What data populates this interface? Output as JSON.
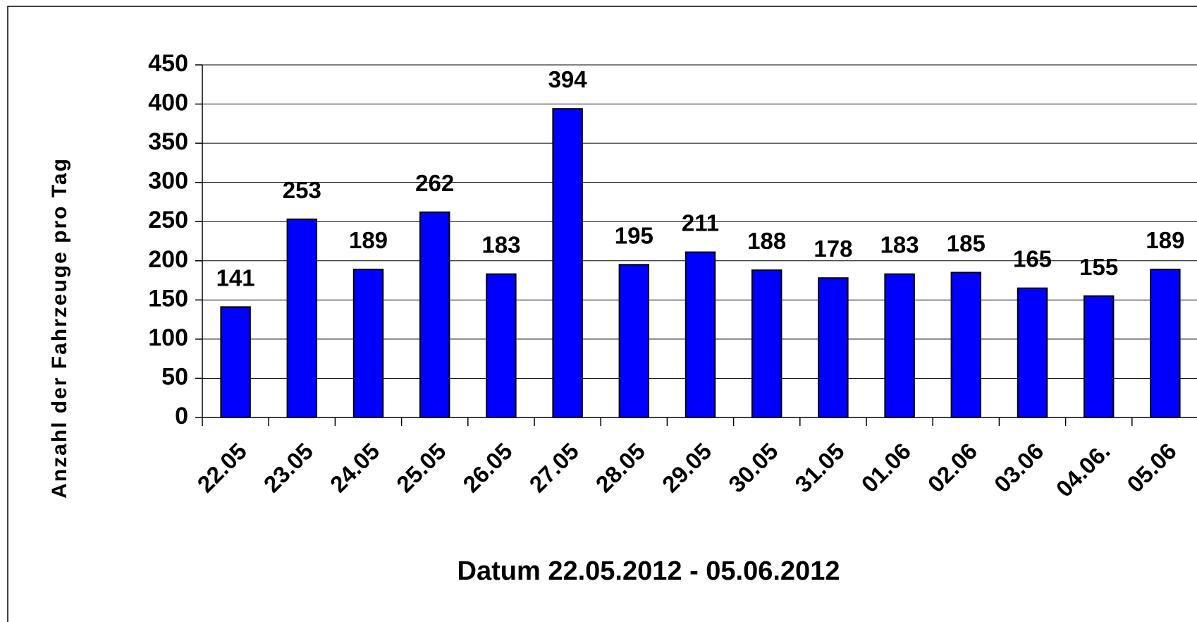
{
  "chart_data": {
    "type": "bar",
    "xlabel": "Datum 22.05.2012 - 05.06.2012",
    "ylabel": "Anzahl der Fahrzeuge pro Tag",
    "categories": [
      "22.05",
      "23.05",
      "24.05",
      "25.05",
      "26.05",
      "27.05",
      "28.05",
      "29.05",
      "30.05",
      "31.05",
      "01.06",
      "02.06",
      "03.06",
      "04.06.",
      "05.06"
    ],
    "values": [
      141,
      253,
      189,
      262,
      183,
      394,
      195,
      211,
      188,
      178,
      183,
      185,
      165,
      155,
      189
    ],
    "color": "#0000ff",
    "ylim": [
      0,
      450
    ],
    "yticks": [
      0,
      50,
      100,
      150,
      200,
      250,
      300,
      350,
      400,
      450
    ],
    "grid": true
  }
}
